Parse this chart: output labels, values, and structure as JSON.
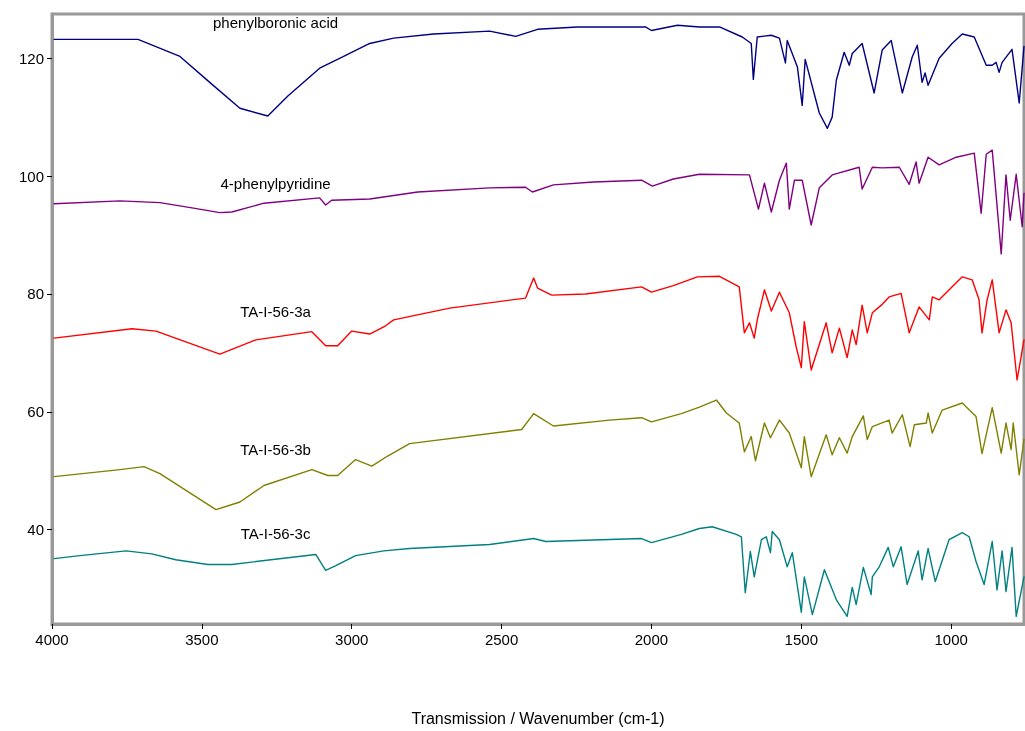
{
  "chart_data": {
    "type": "line",
    "xlabel": "Transmission / Wavenumber (cm-1)",
    "xlim": [
      4000,
      757
    ],
    "xticks": [
      4000,
      3500,
      3000,
      2500,
      2000,
      1500,
      1000
    ],
    "ylim": [
      24,
      127.5
    ],
    "yticks": [
      40,
      60,
      80,
      100,
      120
    ],
    "grid": false,
    "legend": false,
    "marker": "none",
    "line_style": "solid",
    "series": [
      {
        "name": "phenylboronic acid",
        "color": "#000080",
        "x": [
          3993,
          3713,
          3573,
          3467,
          3373,
          3280,
          3213,
          3107,
          3027,
          2940,
          2860,
          2727,
          2540,
          2453,
          2380,
          2247,
          2020,
          2000,
          1913,
          1840,
          1773,
          1697,
          1667,
          1660,
          1647,
          1600,
          1573,
          1553,
          1547,
          1513,
          1497,
          1487,
          1440,
          1413,
          1397,
          1383,
          1357,
          1340,
          1330,
          1297,
          1257,
          1230,
          1200,
          1163,
          1130,
          1113,
          1097,
          1087,
          1077,
          1040,
          997,
          963,
          923,
          883,
          863,
          850,
          840,
          830,
          797,
          773,
          757
        ],
        "values": [
          123.2,
          123.2,
          120.3,
          115.6,
          111.5,
          110.2,
          113.6,
          118.3,
          120.3,
          122.5,
          123.4,
          124.1,
          124.6,
          123.7,
          124.9,
          125.3,
          125.3,
          124.7,
          125.6,
          125.3,
          125.3,
          123.6,
          122.5,
          116.4,
          123.6,
          123.9,
          123.4,
          119.2,
          123,
          118.5,
          112,
          119.8,
          110.7,
          108.1,
          110,
          116.3,
          121,
          118.8,
          120.8,
          122.5,
          114.1,
          121.4,
          123,
          114.1,
          120.2,
          122.2,
          115.9,
          117.5,
          115.4,
          120,
          122.5,
          124.1,
          123.6,
          118.8,
          118.8,
          119.3,
          117.6,
          119.3,
          121.5,
          112.4,
          122
        ]
      },
      {
        "name": "4-phenylpyridine",
        "color": "#800080",
        "x": [
          3993,
          3773,
          3640,
          3533,
          3440,
          3400,
          3293,
          3107,
          3087,
          3067,
          2940,
          2780,
          2540,
          2420,
          2397,
          2327,
          2193,
          2033,
          1997,
          1927,
          1840,
          1673,
          1643,
          1623,
          1600,
          1573,
          1550,
          1540,
          1523,
          1497,
          1467,
          1440,
          1397,
          1307,
          1297,
          1263,
          1230,
          1173,
          1140,
          1117,
          1107,
          1077,
          1040,
          983,
          923,
          900,
          883,
          863,
          833,
          817,
          803,
          783,
          763,
          757
        ],
        "values": [
          95.3,
          95.8,
          95.5,
          94.6,
          93.8,
          93.9,
          95.4,
          96.3,
          95.1,
          95.9,
          96.1,
          97.3,
          98,
          98.1,
          97.3,
          98.5,
          99,
          99.3,
          98.3,
          99.5,
          100.3,
          100.2,
          94.4,
          98.8,
          93.9,
          99.3,
          102.2,
          94.4,
          99.3,
          99.3,
          91.7,
          98,
          100.2,
          101.5,
          97.8,
          101.5,
          101.4,
          101.5,
          98.6,
          102.4,
          98.8,
          103.2,
          101.9,
          103.2,
          103.9,
          93.7,
          103.7,
          104.4,
          86.8,
          100.2,
          92.5,
          100.3,
          91.4,
          97.1
        ]
      },
      {
        "name": "TA-I-56-3a",
        "color": "#ff0000",
        "x": [
          3993,
          3733,
          3653,
          3440,
          3320,
          3133,
          3087,
          3047,
          3000,
          2940,
          2887,
          2860,
          2673,
          2420,
          2393,
          2380,
          2333,
          2220,
          2033,
          2000,
          1927,
          1847,
          1773,
          1707,
          1690,
          1673,
          1657,
          1647,
          1623,
          1600,
          1573,
          1540,
          1517,
          1500,
          1490,
          1467,
          1417,
          1397,
          1373,
          1347,
          1330,
          1317,
          1297,
          1280,
          1263,
          1233,
          1207,
          1167,
          1140,
          1107,
          1073,
          1063,
          1040,
          963,
          930,
          907,
          897,
          880,
          863,
          840,
          817,
          800,
          780,
          757
        ],
        "values": [
          72.5,
          74.1,
          73.7,
          69.8,
          72.2,
          73.6,
          71.2,
          71.2,
          73.7,
          73.2,
          74.6,
          75.6,
          77.6,
          79.3,
          82.7,
          81,
          79.8,
          80,
          81.2,
          80.3,
          81.4,
          82.9,
          83,
          81.2,
          73.4,
          75.1,
          72.5,
          75.6,
          80.7,
          77.1,
          80.3,
          76.8,
          71,
          67.5,
          75.3,
          67.1,
          75.1,
          70,
          74.2,
          69.2,
          73.9,
          71.4,
          78.1,
          73.4,
          76.8,
          78.1,
          79.5,
          80.1,
          73.4,
          77.8,
          75.6,
          79.5,
          79,
          82.9,
          82.4,
          79,
          73.4,
          79,
          82.4,
          73.4,
          77.3,
          75.1,
          65.4,
          72.2
        ]
      },
      {
        "name": "TA-I-56-3b",
        "color": "#808000",
        "x": [
          3993,
          3773,
          3693,
          3640,
          3453,
          3373,
          3293,
          3133,
          3080,
          3047,
          2987,
          2933,
          2880,
          2807,
          2433,
          2393,
          2327,
          2140,
          2033,
          2000,
          1900,
          1840,
          1783,
          1750,
          1707,
          1690,
          1667,
          1653,
          1623,
          1603,
          1573,
          1540,
          1500,
          1490,
          1467,
          1417,
          1397,
          1373,
          1347,
          1330,
          1293,
          1280,
          1263,
          1207,
          1197,
          1163,
          1137,
          1123,
          1083,
          1077,
          1063,
          1030,
          963,
          917,
          897,
          863,
          833,
          817,
          800,
          793,
          773,
          757
        ],
        "values": [
          49,
          50.2,
          50.7,
          49.5,
          43.4,
          44.7,
          47.5,
          50.2,
          49.2,
          49.2,
          51.9,
          50.8,
          52.5,
          54.6,
          57,
          59.7,
          57.6,
          58.6,
          59,
          58.3,
          59.7,
          60.8,
          62,
          59.8,
          58.1,
          53.2,
          55.8,
          51.7,
          58.1,
          55.6,
          58.6,
          56.4,
          50.5,
          55.8,
          49,
          56.1,
          52.7,
          55.6,
          53,
          55.8,
          59.3,
          55.3,
          57.5,
          58.6,
          56.4,
          59.5,
          54.1,
          57.8,
          58.1,
          59.8,
          56.4,
          60.3,
          61.5,
          59.2,
          52.9,
          60.7,
          53,
          58.1,
          53.6,
          58.1,
          49.3,
          55.3
        ]
      },
      {
        "name": "TA-I-56-3c",
        "color": "#008080",
        "x": [
          3993,
          3907,
          3753,
          3667,
          3587,
          3480,
          3400,
          3120,
          3087,
          3053,
          2987,
          2893,
          2807,
          2540,
          2393,
          2353,
          2033,
          2000,
          1900,
          1840,
          1797,
          1717,
          1700,
          1687,
          1670,
          1657,
          1633,
          1617,
          1603,
          1597,
          1573,
          1547,
          1530,
          1500,
          1490,
          1463,
          1423,
          1383,
          1347,
          1330,
          1317,
          1293,
          1267,
          1263,
          1240,
          1210,
          1193,
          1167,
          1147,
          1110,
          1097,
          1077,
          1053,
          1007,
          963,
          940,
          917,
          890,
          863,
          847,
          830,
          817,
          797,
          783,
          757
        ],
        "values": [
          35.1,
          35.6,
          36.4,
          35.9,
          34.9,
          34.1,
          34.1,
          35.8,
          33.1,
          33.9,
          35.6,
          36.4,
          36.8,
          37.5,
          38.5,
          38,
          38.5,
          37.8,
          39.2,
          40.2,
          40.5,
          39.2,
          38.8,
          29.3,
          36.3,
          32,
          38.3,
          38.8,
          36.1,
          39.7,
          38.3,
          33.7,
          36.1,
          26,
          32,
          25.6,
          33.2,
          28.1,
          25.3,
          30.2,
          27.3,
          33.6,
          29,
          32,
          33.7,
          37,
          33.7,
          37.1,
          30.7,
          36.4,
          31.5,
          36.8,
          31.2,
          38.3,
          39.5,
          38.8,
          34.6,
          30.7,
          38,
          29.8,
          36.4,
          29.5,
          37,
          25.3,
          32
        ]
      }
    ]
  }
}
